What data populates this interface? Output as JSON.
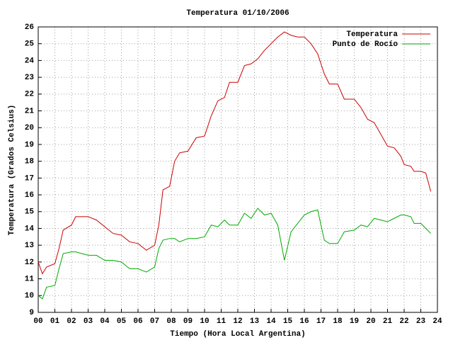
{
  "chart_data": {
    "type": "line",
    "title": "Temperatura 01/10/2006",
    "x_label": "Tiempo (Hora Local Argentina)",
    "y_label": "Temperatura (Grados Celsius)",
    "x": [
      0,
      0.25,
      0.5,
      1,
      1.25,
      1.5,
      2,
      2.25,
      3,
      3.5,
      4,
      4.5,
      5,
      5.5,
      6,
      6.5,
      7,
      7.25,
      7.5,
      7.9,
      8.2,
      8.5,
      9,
      9.5,
      10,
      10.4,
      10.8,
      11.2,
      11.5,
      12,
      12.4,
      12.8,
      13.2,
      13.6,
      14,
      14.4,
      14.8,
      15.2,
      15.6,
      16,
      16.4,
      16.8,
      17.2,
      17.5,
      18,
      18.4,
      19,
      19.4,
      19.8,
      20.2,
      20.6,
      21,
      21.4,
      21.8,
      22,
      22.4,
      22.6,
      23,
      23.3,
      23.6
    ],
    "series": [
      {
        "name": "Temperatura",
        "color": "#cc0000",
        "values": [
          12.0,
          11.3,
          11.7,
          11.9,
          12.8,
          13.9,
          14.2,
          14.7,
          14.7,
          14.5,
          14.1,
          13.7,
          13.6,
          13.2,
          13.1,
          12.7,
          13.0,
          14.2,
          16.3,
          16.5,
          18.0,
          18.5,
          18.6,
          19.4,
          19.5,
          20.7,
          21.6,
          21.8,
          22.7,
          22.7,
          23.7,
          23.8,
          24.1,
          24.6,
          25.0,
          25.4,
          25.7,
          25.5,
          25.4,
          25.4,
          25.0,
          24.4,
          23.2,
          22.6,
          22.6,
          21.7,
          21.7,
          21.2,
          20.5,
          20.3,
          19.6,
          18.9,
          18.8,
          18.3,
          17.8,
          17.7,
          17.4,
          17.4,
          17.3,
          16.2
        ]
      },
      {
        "name": "Punto de Rocío",
        "color": "#00aa00",
        "values": [
          10.0,
          9.8,
          10.5,
          10.6,
          11.6,
          12.5,
          12.6,
          12.6,
          12.4,
          12.4,
          12.1,
          12.1,
          12.0,
          11.6,
          11.6,
          11.4,
          11.7,
          12.8,
          13.3,
          13.4,
          13.4,
          13.2,
          13.4,
          13.4,
          13.5,
          14.2,
          14.1,
          14.5,
          14.2,
          14.2,
          14.9,
          14.6,
          15.2,
          14.8,
          14.9,
          14.2,
          12.1,
          13.8,
          14.3,
          14.8,
          15.0,
          15.1,
          13.3,
          13.1,
          13.1,
          13.8,
          13.9,
          14.2,
          14.1,
          14.6,
          14.5,
          14.4,
          14.6,
          14.8,
          14.8,
          14.7,
          14.3,
          14.3,
          14.0,
          13.7
        ]
      }
    ],
    "xlim": [
      0,
      24
    ],
    "xticks": [
      {
        "value": 0,
        "label": "00"
      },
      {
        "value": 1,
        "label": "01"
      },
      {
        "value": 2,
        "label": "02"
      },
      {
        "value": 3,
        "label": "03"
      },
      {
        "value": 4,
        "label": "04"
      },
      {
        "value": 5,
        "label": "05"
      },
      {
        "value": 6,
        "label": "06"
      },
      {
        "value": 7,
        "label": "07"
      },
      {
        "value": 8,
        "label": "08"
      },
      {
        "value": 9,
        "label": "09"
      },
      10,
      11,
      12,
      13,
      14,
      15,
      16,
      17,
      18,
      19,
      20,
      21,
      22,
      23,
      24
    ],
    "ylim": [
      9,
      26
    ],
    "yticks": [
      9,
      10,
      11,
      12,
      13,
      14,
      15,
      16,
      17,
      18,
      19,
      20,
      21,
      22,
      23,
      24,
      25,
      26
    ],
    "grid": true,
    "legend": "top-right"
  }
}
